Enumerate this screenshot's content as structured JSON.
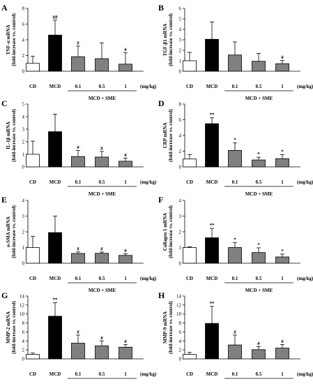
{
  "colors": {
    "CD": "#ffffff",
    "MCD": "#000000",
    "SME": "#808080",
    "axis": "#000000"
  },
  "group_label": "MCD + SME",
  "unit_label": "(mg/kg)",
  "chart_data": [
    {
      "panel": "A",
      "type": "bar",
      "ylabel": [
        "TNF-α mRNA",
        "(fold-increase vs. control)"
      ],
      "categories": [
        "CD",
        "MCD",
        "0.1",
        "0.5",
        "1"
      ],
      "values": [
        1.0,
        4.6,
        1.85,
        1.6,
        0.9
      ],
      "errors": [
        0.9,
        1.9,
        1.35,
        2.0,
        1.45
      ],
      "marks": [
        "",
        "##",
        "#",
        "",
        "#"
      ],
      "ylim": [
        0,
        8
      ],
      "yticks": [
        0,
        2,
        4,
        6,
        8
      ]
    },
    {
      "panel": "B",
      "type": "bar",
      "ylabel": [
        "TGF-β1 mRNA",
        "(fold-increase vs. control)"
      ],
      "categories": [
        "CD",
        "MCD",
        "0.1",
        "0.5",
        "1"
      ],
      "values": [
        1.0,
        3.05,
        1.55,
        0.95,
        0.72
      ],
      "errors": [
        0.8,
        1.65,
        1.25,
        0.75,
        0.3
      ],
      "marks": [
        "",
        "",
        "",
        "",
        "#"
      ],
      "ylim": [
        0,
        6
      ],
      "yticks": [
        0,
        1,
        2,
        3,
        4,
        5,
        6
      ]
    },
    {
      "panel": "C",
      "type": "bar",
      "ylabel": [
        "IL-1β mRNA",
        "(fold-increase vs. control)"
      ],
      "categories": [
        "CD",
        "MCD",
        "0.1",
        "0.5",
        "1"
      ],
      "values": [
        1.0,
        2.8,
        0.82,
        0.78,
        0.45
      ],
      "errors": [
        1.05,
        1.4,
        0.48,
        0.45,
        0.25
      ],
      "marks": [
        "",
        "",
        "#",
        "#",
        "#"
      ],
      "ylim": [
        0,
        5
      ],
      "yticks": [
        0,
        1,
        2,
        3,
        4,
        5
      ]
    },
    {
      "panel": "D",
      "type": "bar",
      "ylabel": [
        "CRP mRNA",
        "(fold-increase vs. control)"
      ],
      "categories": [
        "CD",
        "MCD",
        "0.1",
        "0.5",
        "1"
      ],
      "values": [
        1.0,
        5.5,
        2.1,
        0.88,
        1.05
      ],
      "errors": [
        0.55,
        0.75,
        0.95,
        0.35,
        0.5
      ],
      "marks": [
        "",
        "**",
        "*",
        "*",
        "*"
      ],
      "ylim": [
        0,
        8
      ],
      "yticks": [
        0,
        2,
        4,
        6,
        8
      ]
    },
    {
      "panel": "E",
      "type": "bar",
      "ylabel": [
        "α-SMA mRNA",
        "(fold-increase vs. control)"
      ],
      "categories": [
        "CD",
        "MCD",
        "0.1",
        "0.5",
        "1"
      ],
      "values": [
        1.0,
        1.95,
        0.62,
        0.63,
        0.5
      ],
      "errors": [
        0.72,
        1.05,
        0.1,
        0.08,
        0.1
      ],
      "marks": [
        "",
        "",
        "#",
        "#",
        "#"
      ],
      "ylim": [
        0,
        4
      ],
      "yticks": [
        0,
        1,
        2,
        3,
        4
      ]
    },
    {
      "panel": "F",
      "type": "bar",
      "ylabel": [
        "Collagen 1 mRNA",
        "(fold-increase vs. control)"
      ],
      "categories": [
        "CD",
        "MCD",
        "0.1",
        "0.5",
        "1"
      ],
      "values": [
        1.0,
        1.62,
        1.0,
        0.68,
        0.4
      ],
      "errors": [
        0.05,
        0.6,
        0.32,
        0.3,
        0.18
      ],
      "marks": [
        "",
        "**",
        "*",
        "*",
        "*"
      ],
      "ylim": [
        0,
        4
      ],
      "yticks": [
        0,
        1,
        2,
        3,
        4
      ]
    },
    {
      "panel": "G",
      "type": "bar",
      "ylabel": [
        "MMP-2 mRNA",
        "(fold-increase vs. control)"
      ],
      "categories": [
        "CD",
        "MCD",
        "0.1",
        "0.5",
        "1"
      ],
      "values": [
        1.0,
        9.5,
        3.5,
        2.9,
        2.6
      ],
      "errors": [
        0.3,
        3.0,
        1.8,
        1.1,
        0.6
      ],
      "marks": [
        "",
        "**",
        "#",
        "#",
        "#"
      ],
      "ylim": [
        0,
        14
      ],
      "yticks": [
        0,
        2,
        4,
        6,
        8,
        10,
        12,
        14
      ]
    },
    {
      "panel": "H",
      "type": "bar",
      "ylabel": [
        "MMP-9 mRNA",
        "(fold-increase vs. control)"
      ],
      "categories": [
        "CD",
        "MCD",
        "0.1",
        "0.5",
        "1"
      ],
      "values": [
        1.0,
        7.9,
        3.1,
        2.05,
        2.4
      ],
      "errors": [
        0.45,
        3.8,
        2.2,
        0.7,
        0.8
      ],
      "marks": [
        "",
        "**",
        "#",
        "#",
        "#"
      ],
      "ylim": [
        0,
        14
      ],
      "yticks": [
        0,
        2,
        4,
        6,
        8,
        10,
        12,
        14
      ]
    }
  ]
}
